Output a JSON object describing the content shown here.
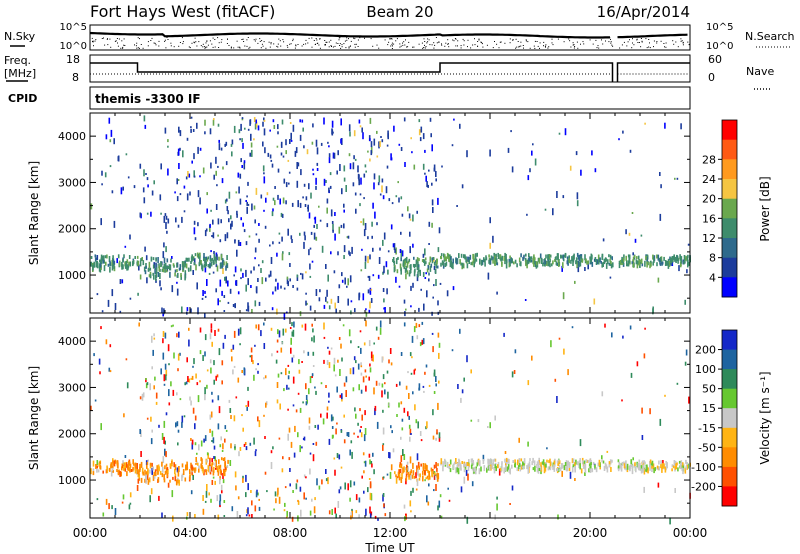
{
  "header": {
    "station": "Fort Hays West (fitACF)",
    "beam": "Beam 20",
    "date": "16/Apr/2014"
  },
  "noise_panel": {
    "left_label": "N.Sky",
    "right_label": "N.Search",
    "tick_top": "10^5",
    "tick_bottom": "10^0"
  },
  "freq_panel": {
    "left_label_1": "Freq.",
    "left_label_2": "[MHz]",
    "right_label": "Nave",
    "left_ticks": [
      "18",
      "8"
    ],
    "right_ticks": [
      "60",
      "0"
    ]
  },
  "cpid": {
    "label": "CPID",
    "program": "themis -3300 IF"
  },
  "chart_data": [
    {
      "type": "heatmap",
      "title": "Power",
      "ylabel": "Slant Range [km]",
      "xlabel": "",
      "x_ticks": [
        "00:00",
        "04:00",
        "08:00",
        "12:00",
        "16:00",
        "20:00",
        "00:00"
      ],
      "x_range_hours": [
        0,
        24
      ],
      "y_ticks": [
        1000,
        2000,
        3000,
        4000
      ],
      "ylim": [
        180,
        4500
      ],
      "colorbar": {
        "label": "Power [dB]",
        "ticks": [
          "4",
          "8",
          "12",
          "16",
          "20",
          "24",
          "28"
        ],
        "colors": [
          "#0000ff",
          "#1c3c9c",
          "#2e6a8c",
          "#3e8c6c",
          "#6aa84e",
          "#f5c542",
          "#ff9a1e",
          "#ff5a14",
          "#ff0000"
        ]
      },
      "bands": [
        {
          "hours": [
            0.0,
            1.9
          ],
          "range_km": [
            1180,
            1450
          ],
          "level": "green"
        },
        {
          "hours": [
            1.9,
            4.0
          ],
          "range_km": [
            1000,
            1400
          ],
          "level": "green"
        },
        {
          "hours": [
            4.0,
            5.5
          ],
          "range_km": [
            1200,
            1500
          ],
          "level": "green"
        },
        {
          "hours": [
            12.0,
            13.9
          ],
          "range_km": [
            1050,
            1400
          ],
          "level": "green"
        },
        {
          "hours": [
            14.0,
            20.9
          ],
          "range_km": [
            1250,
            1480
          ],
          "level": "green"
        },
        {
          "hours": [
            21.1,
            24.0
          ],
          "range_km": [
            1250,
            1450
          ],
          "level": "green"
        }
      ]
    },
    {
      "type": "heatmap",
      "title": "Velocity",
      "ylabel": "Slant Range [km]",
      "xlabel": "Time UT",
      "x_ticks": [
        "00:00",
        "04:00",
        "08:00",
        "12:00",
        "16:00",
        "20:00",
        "00:00"
      ],
      "x_range_hours": [
        0,
        24
      ],
      "y_ticks": [
        1000,
        2000,
        3000,
        4000
      ],
      "ylim": [
        180,
        4500
      ],
      "colorbar": {
        "label": "Velocity [m s⁻¹]",
        "ticks": [
          "200",
          "100",
          "50",
          "15",
          "-15",
          "-50",
          "-100",
          "-200"
        ],
        "colors": [
          "#1428c8",
          "#1e64a0",
          "#2e8a5a",
          "#66c830",
          "#c8c8c8",
          "#ffb414",
          "#ff8c00",
          "#ff5000",
          "#ff0000"
        ]
      },
      "bands": [
        {
          "hours": [
            0.0,
            1.9
          ],
          "range_km": [
            1180,
            1450
          ],
          "level": "orange"
        },
        {
          "hours": [
            1.9,
            4.0
          ],
          "range_km": [
            1000,
            1400
          ],
          "level": "orange"
        },
        {
          "hours": [
            4.0,
            5.5
          ],
          "range_km": [
            1200,
            1500
          ],
          "level": "orange"
        },
        {
          "hours": [
            12.0,
            13.9
          ],
          "range_km": [
            1050,
            1400
          ],
          "level": "orange"
        },
        {
          "hours": [
            14.0,
            20.9
          ],
          "range_km": [
            1250,
            1480
          ],
          "level": "grey"
        },
        {
          "hours": [
            21.1,
            24.0
          ],
          "range_km": [
            1250,
            1450
          ],
          "level": "grey"
        }
      ]
    }
  ]
}
